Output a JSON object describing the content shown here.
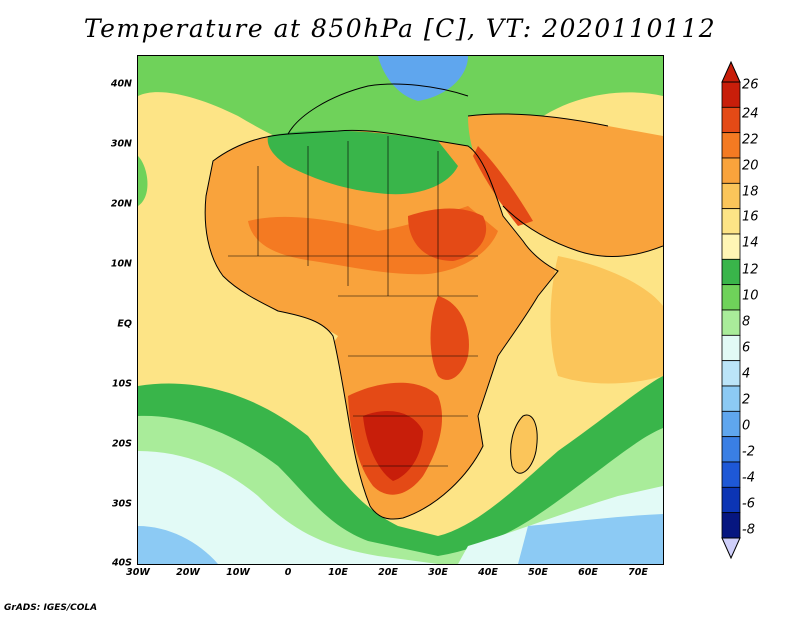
{
  "title": "Temperature at 850hPa [C], VT: 2020110112",
  "credit": "GrADS: IGES/COLA",
  "lat_labels": [
    "40N",
    "30N",
    "20N",
    "10N",
    "EQ",
    "10S",
    "20S",
    "30S",
    "40S"
  ],
  "lon_labels": [
    "30W",
    "20W",
    "10W",
    "0",
    "10E",
    "20E",
    "30E",
    "40E",
    "50E",
    "60E",
    "70E"
  ],
  "colorbar": {
    "labels": [
      "26",
      "24",
      "22",
      "20",
      "18",
      "16",
      "14",
      "12",
      "10",
      "8",
      "6",
      "4",
      "2",
      "0",
      "-2",
      "-4",
      "-6",
      "-8"
    ],
    "colors": [
      "#c81e0a",
      "#e44a16",
      "#f47a22",
      "#f9a33c",
      "#fbc55a",
      "#fde486",
      "#fff6b5",
      "#39b54a",
      "#6fd25a",
      "#a9ec9a",
      "#e2faf6",
      "#bbe4f8",
      "#8ccaf4",
      "#5fa6ee",
      "#3a7fe4",
      "#1e58d6",
      "#0c35b4",
      "#061680"
    ],
    "low_arrow_color": "#cfcffa",
    "high_arrow_color": "#c81e0a"
  },
  "map": {
    "lat_range": [
      -40,
      45
    ],
    "lon_range": [
      -30,
      75
    ],
    "ocean_color": "#fde486",
    "land_color": "#f9a33c"
  }
}
